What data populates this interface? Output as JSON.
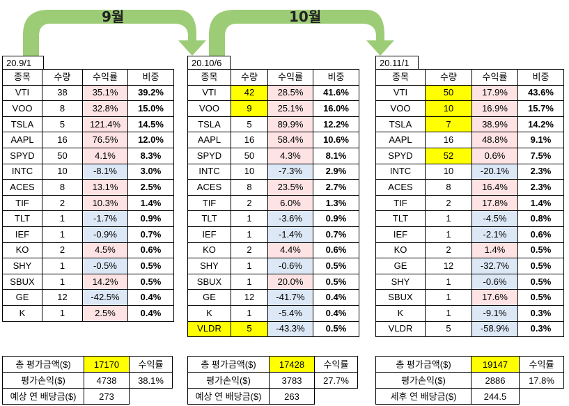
{
  "months": {
    "m1": "9월",
    "m2": "10월"
  },
  "colors": {
    "arrow": "#9dcc76",
    "highlight": "#ffff00",
    "positive": "#fde3e3",
    "negative": "#dde8f6"
  },
  "headers": {
    "ticker": "종목",
    "qty": "수량",
    "ret": "수익률",
    "weight": "비중"
  },
  "portfolios": [
    {
      "date": "20.9/1",
      "rows": [
        {
          "t": "VTI",
          "q": "38",
          "r": "35.1%",
          "w": "39.2%",
          "s": "pos",
          "h": false
        },
        {
          "t": "VOO",
          "q": "8",
          "r": "32.8%",
          "w": "15.0%",
          "s": "pos",
          "h": false
        },
        {
          "t": "TSLA",
          "q": "5",
          "r": "121.4%",
          "w": "14.5%",
          "s": "pos",
          "h": false
        },
        {
          "t": "AAPL",
          "q": "16",
          "r": "76.5%",
          "w": "12.0%",
          "s": "pos",
          "h": false
        },
        {
          "t": "SPYD",
          "q": "50",
          "r": "4.1%",
          "w": "8.3%",
          "s": "pos",
          "h": false
        },
        {
          "t": "INTC",
          "q": "10",
          "r": "-8.1%",
          "w": "3.0%",
          "s": "neg",
          "h": false
        },
        {
          "t": "ACES",
          "q": "8",
          "r": "13.1%",
          "w": "2.5%",
          "s": "pos",
          "h": false
        },
        {
          "t": "TIF",
          "q": "2",
          "r": "10.3%",
          "w": "1.4%",
          "s": "pos",
          "h": false
        },
        {
          "t": "TLT",
          "q": "1",
          "r": "-1.7%",
          "w": "0.9%",
          "s": "neg",
          "h": false
        },
        {
          "t": "IEF",
          "q": "1",
          "r": "-0.9%",
          "w": "0.7%",
          "s": "neg",
          "h": false
        },
        {
          "t": "KO",
          "q": "2",
          "r": "4.5%",
          "w": "0.6%",
          "s": "pos",
          "h": false
        },
        {
          "t": "SHY",
          "q": "1",
          "r": "-0.5%",
          "w": "0.5%",
          "s": "neg",
          "h": false
        },
        {
          "t": "SBUX",
          "q": "1",
          "r": "14.2%",
          "w": "0.5%",
          "s": "pos",
          "h": false
        },
        {
          "t": "GE",
          "q": "12",
          "r": "-42.5%",
          "w": "0.4%",
          "s": "neg",
          "h": false
        },
        {
          "t": "K",
          "q": "1",
          "r": "2.5%",
          "w": "0.4%",
          "s": "pos",
          "h": false
        }
      ],
      "summary": {
        "total_label": "총 평가금액($)",
        "total": "17170",
        "ret_label": "수익률",
        "pl_label": "평가손익($)",
        "pl": "4738",
        "ret": "38.1%",
        "div_label": "예상 연 배당금($)",
        "div": "273"
      }
    },
    {
      "date": "20.10/6",
      "rows": [
        {
          "t": "VTI",
          "q": "42",
          "r": "28.5%",
          "w": "41.6%",
          "s": "pos",
          "h": true
        },
        {
          "t": "VOO",
          "q": "9",
          "r": "25.1%",
          "w": "16.0%",
          "s": "pos",
          "h": true
        },
        {
          "t": "TSLA",
          "q": "5",
          "r": "89.9%",
          "w": "12.2%",
          "s": "pos",
          "h": false
        },
        {
          "t": "AAPL",
          "q": "16",
          "r": "58.4%",
          "w": "10.6%",
          "s": "pos",
          "h": false
        },
        {
          "t": "SPYD",
          "q": "50",
          "r": "4.3%",
          "w": "8.1%",
          "s": "pos",
          "h": false
        },
        {
          "t": "INTC",
          "q": "10",
          "r": "-7.3%",
          "w": "2.9%",
          "s": "neg",
          "h": false
        },
        {
          "t": "ACES",
          "q": "8",
          "r": "23.5%",
          "w": "2.7%",
          "s": "pos",
          "h": false
        },
        {
          "t": "TIF",
          "q": "2",
          "r": "6.0%",
          "w": "1.3%",
          "s": "pos",
          "h": false
        },
        {
          "t": "TLT",
          "q": "1",
          "r": "-3.6%",
          "w": "0.9%",
          "s": "neg",
          "h": false
        },
        {
          "t": "IEF",
          "q": "1",
          "r": "-1.4%",
          "w": "0.7%",
          "s": "neg",
          "h": false
        },
        {
          "t": "KO",
          "q": "2",
          "r": "4.4%",
          "w": "0.6%",
          "s": "pos",
          "h": false
        },
        {
          "t": "SHY",
          "q": "1",
          "r": "-0.6%",
          "w": "0.5%",
          "s": "neg",
          "h": false
        },
        {
          "t": "SBUX",
          "q": "1",
          "r": "20.0%",
          "w": "0.5%",
          "s": "pos",
          "h": false
        },
        {
          "t": "GE",
          "q": "12",
          "r": "-41.7%",
          "w": "0.4%",
          "s": "neg",
          "h": false
        },
        {
          "t": "K",
          "q": "1",
          "r": "-5.4%",
          "w": "0.4%",
          "s": "neg",
          "h": false
        },
        {
          "t": "VLDR",
          "q": "5",
          "r": "-43.3%",
          "w": "0.5%",
          "s": "neg",
          "h": true,
          "ht": true
        }
      ],
      "summary": {
        "total_label": "총 평가금액($)",
        "total": "17428",
        "ret_label": "수익률",
        "pl_label": "평가손익($)",
        "pl": "3783",
        "ret": "27.7%",
        "div_label": "예상 연 배당금($)",
        "div": "263"
      }
    },
    {
      "date": "20.11/1",
      "rows": [
        {
          "t": "VTI",
          "q": "50",
          "r": "17.9%",
          "w": "43.6%",
          "s": "pos",
          "h": true
        },
        {
          "t": "VOO",
          "q": "10",
          "r": "16.9%",
          "w": "15.7%",
          "s": "pos",
          "h": true
        },
        {
          "t": "TSLA",
          "q": "7",
          "r": "38.9%",
          "w": "14.2%",
          "s": "pos",
          "h": true
        },
        {
          "t": "AAPL",
          "q": "16",
          "r": "48.8%",
          "w": "9.1%",
          "s": "pos",
          "h": false
        },
        {
          "t": "SPYD",
          "q": "52",
          "r": "0.6%",
          "w": "7.5%",
          "s": "pos",
          "h": true
        },
        {
          "t": "INTC",
          "q": "10",
          "r": "-20.1%",
          "w": "2.3%",
          "s": "neg",
          "h": false
        },
        {
          "t": "ACES",
          "q": "8",
          "r": "16.4%",
          "w": "2.3%",
          "s": "pos",
          "h": false
        },
        {
          "t": "TIF",
          "q": "2",
          "r": "17.8%",
          "w": "1.4%",
          "s": "pos",
          "h": false
        },
        {
          "t": "TLT",
          "q": "1",
          "r": "-4.5%",
          "w": "0.8%",
          "s": "neg",
          "h": false
        },
        {
          "t": "IEF",
          "q": "1",
          "r": "-2.1%",
          "w": "0.6%",
          "s": "neg",
          "h": false
        },
        {
          "t": "KO",
          "q": "2",
          "r": "1.4%",
          "w": "0.5%",
          "s": "pos",
          "h": false
        },
        {
          "t": "GE",
          "q": "12",
          "r": "-32.7%",
          "w": "0.5%",
          "s": "neg",
          "h": false
        },
        {
          "t": "SHY",
          "q": "1",
          "r": "-0.6%",
          "w": "0.5%",
          "s": "neg",
          "h": false
        },
        {
          "t": "SBUX",
          "q": "1",
          "r": "17.6%",
          "w": "0.5%",
          "s": "pos",
          "h": false
        },
        {
          "t": "K",
          "q": "1",
          "r": "-9.1%",
          "w": "0.3%",
          "s": "neg",
          "h": false
        },
        {
          "t": "VLDR",
          "q": "5",
          "r": "-58.9%",
          "w": "0.3%",
          "s": "neg",
          "h": false
        }
      ],
      "summary": {
        "total_label": "총 평가금액($)",
        "total": "19147",
        "ret_label": "수익률",
        "pl_label": "평가손익($)",
        "pl": "2886",
        "ret": "17.8%",
        "div_label": "세후 연 배당금($)",
        "div": "244.5"
      }
    }
  ]
}
